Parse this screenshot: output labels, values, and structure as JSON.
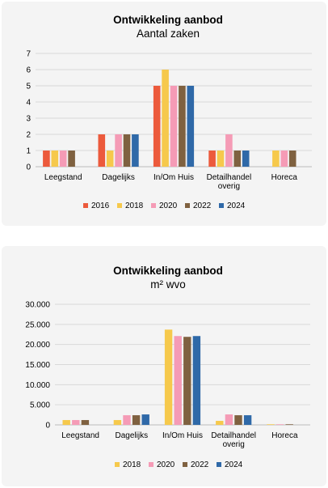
{
  "chart_data": [
    {
      "type": "bar",
      "title": "Ontwikkeling aanbod",
      "subtitle": "Aantal zaken",
      "categories": [
        "Leegstand",
        "Dagelijks",
        "In/Om Huis",
        "Detailhandel overig",
        "Horeca"
      ],
      "category_lines": [
        [
          "Leegstand"
        ],
        [
          "Dagelijks"
        ],
        [
          "In/Om Huis"
        ],
        [
          "Detailhandel",
          "overig"
        ],
        [
          "Horeca"
        ]
      ],
      "series": [
        {
          "name": "2016",
          "color": "#ec5a3c",
          "values": [
            1,
            2,
            5,
            1,
            0
          ]
        },
        {
          "name": "2018",
          "color": "#f6c94c",
          "values": [
            1,
            1,
            6,
            1,
            1
          ]
        },
        {
          "name": "2020",
          "color": "#f59bb6",
          "values": [
            1,
            2,
            5,
            2,
            1
          ]
        },
        {
          "name": "2022",
          "color": "#7f6140",
          "values": [
            1,
            2,
            5,
            1,
            1
          ]
        },
        {
          "name": "2024",
          "color": "#2f69a8",
          "values": [
            0,
            2,
            5,
            1,
            0
          ]
        }
      ],
      "ylim": [
        0,
        7
      ],
      "yticks": [
        "0",
        "1",
        "2",
        "3",
        "4",
        "5",
        "6",
        "7"
      ],
      "grid": true,
      "legend": "bottom"
    },
    {
      "type": "bar",
      "title": "Ontwikkeling aanbod",
      "subtitle": "m² wvo",
      "categories": [
        "Leegstand",
        "Dagelijks",
        "In/Om Huis",
        "Detailhandel overig",
        "Horeca"
      ],
      "category_lines": [
        [
          "Leegstand"
        ],
        [
          "Dagelijks"
        ],
        [
          "In/Om Huis"
        ],
        [
          "Detailhandel",
          "overig"
        ],
        [
          "Horeca"
        ]
      ],
      "series": [
        {
          "name": "2018",
          "color": "#f6c94c",
          "values": [
            1200,
            1200,
            23700,
            1000,
            150
          ]
        },
        {
          "name": "2020",
          "color": "#f59bb6",
          "values": [
            1200,
            2400,
            22100,
            2600,
            150
          ]
        },
        {
          "name": "2022",
          "color": "#7f6140",
          "values": [
            1200,
            2400,
            21900,
            2400,
            150
          ]
        },
        {
          "name": "2024",
          "color": "#2f69a8",
          "values": [
            0,
            2600,
            22100,
            2400,
            0
          ]
        }
      ],
      "ylim": [
        0,
        30000
      ],
      "yticks": [
        "0",
        "5.000",
        "10.000",
        "15.000",
        "20.000",
        "25.000",
        "30.000"
      ],
      "grid": true,
      "legend": "bottom"
    }
  ]
}
